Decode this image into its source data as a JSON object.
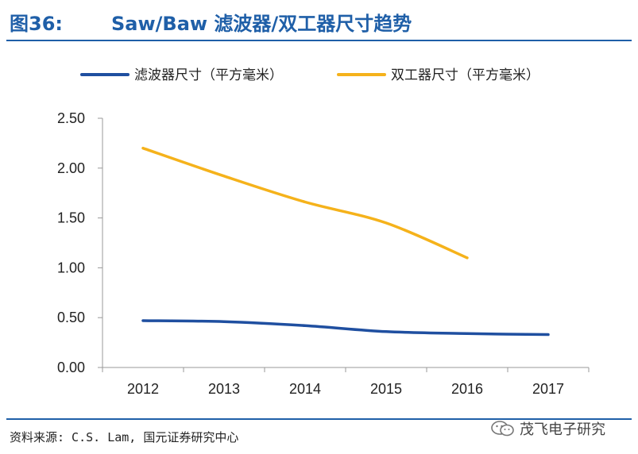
{
  "header": {
    "figure_label": "图36:",
    "title": "Saw/Baw 滤波器/双工器尺寸趋势"
  },
  "footer": {
    "source": "资料来源: C.S. Lam,  国元证券研究中心",
    "watermark": "茂飞电子研究"
  },
  "chart_data": {
    "type": "line",
    "x": [
      "2012",
      "2013",
      "2014",
      "2015",
      "2016",
      "2017"
    ],
    "ylim": [
      0,
      2.5
    ],
    "yticks": [
      "0.00",
      "0.50",
      "1.00",
      "1.50",
      "2.00",
      "2.50"
    ],
    "grid": false,
    "legend_position": "top",
    "series": [
      {
        "name": "滤波器尺寸（平方毫米）",
        "color": "#1f4fa0",
        "values": [
          0.47,
          0.46,
          0.42,
          0.36,
          0.34,
          0.33
        ]
      },
      {
        "name": "双工器尺寸（平方毫米）",
        "color": "#f5b21b",
        "values": [
          2.2,
          1.92,
          1.66,
          1.45,
          1.1,
          null
        ]
      }
    ]
  }
}
